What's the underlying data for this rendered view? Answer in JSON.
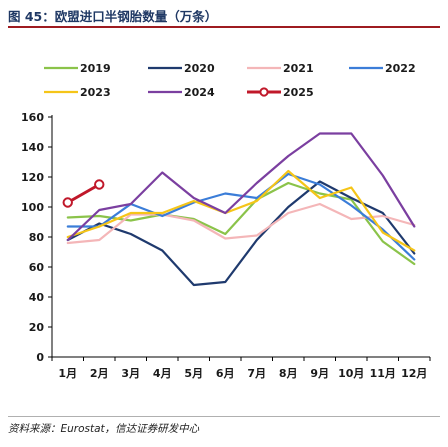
{
  "figure": {
    "title": "图 45：欧盟进口半钢胎数量（万条）",
    "source": "资料来源：Eurostat，信达证券研发中心"
  },
  "chart_data": {
    "type": "line",
    "categories": [
      "1月",
      "2月",
      "3月",
      "4月",
      "5月",
      "6月",
      "7月",
      "8月",
      "9月",
      "10月",
      "11月",
      "12月"
    ],
    "ylim": [
      0,
      160
    ],
    "yticks": [
      0,
      20,
      40,
      60,
      80,
      100,
      120,
      140,
      160
    ],
    "grid": false,
    "legend_position": "top",
    "xlabel": "",
    "ylabel": "",
    "series": [
      {
        "name": "2019",
        "color": "#8bc34a",
        "markers": false,
        "values": [
          93,
          94,
          91,
          95,
          92,
          82,
          105,
          116,
          109,
          105,
          77,
          62
        ]
      },
      {
        "name": "2020",
        "color": "#1f3a6e",
        "markers": false,
        "values": [
          78,
          89,
          82,
          71,
          48,
          50,
          78,
          100,
          117,
          106,
          96,
          69
        ]
      },
      {
        "name": "2021",
        "color": "#f4b6b8",
        "markers": false,
        "values": [
          76,
          78,
          95,
          95,
          91,
          79,
          81,
          96,
          102,
          92,
          94,
          88
        ]
      },
      {
        "name": "2022",
        "color": "#3b7dd8",
        "markers": false,
        "values": [
          87,
          87,
          102,
          94,
          103,
          109,
          106,
          122,
          115,
          101,
          85,
          65
        ]
      },
      {
        "name": "2023",
        "color": "#f5c518",
        "markers": false,
        "values": [
          80,
          87,
          96,
          96,
          104,
          96,
          104,
          124,
          106,
          113,
          83,
          71
        ]
      },
      {
        "name": "2024",
        "color": "#7b3fa0",
        "markers": false,
        "values": [
          78,
          98,
          102,
          123,
          106,
          96,
          116,
          134,
          149,
          149,
          121,
          87
        ]
      },
      {
        "name": "2025",
        "color": "#c0182a",
        "markers": true,
        "values": [
          103,
          115,
          null,
          null,
          null,
          null,
          null,
          null,
          null,
          null,
          null,
          null
        ]
      }
    ]
  }
}
